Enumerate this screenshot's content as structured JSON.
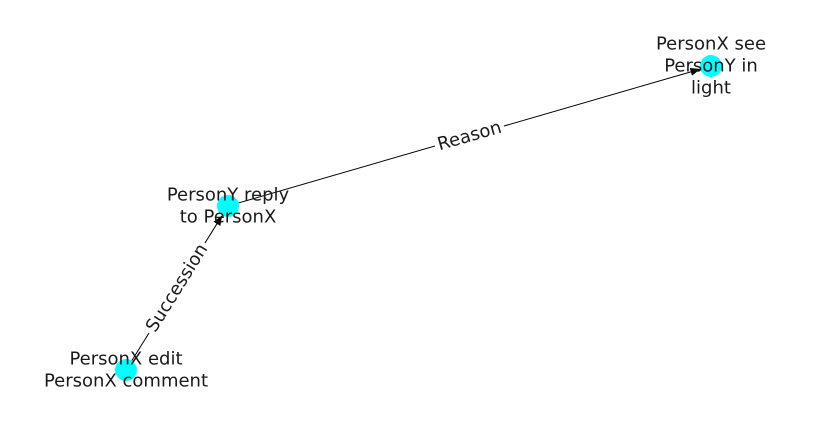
{
  "graph": {
    "node_color": "#00ffff",
    "edge_color": "#000000",
    "nodes": [
      {
        "id": "n1",
        "label_lines": [
          "PersonX see",
          "PersonY in",
          "light"
        ]
      },
      {
        "id": "n2",
        "label_lines": [
          "PersonY reply",
          "to PersonX"
        ]
      },
      {
        "id": "n3",
        "label_lines": [
          "PersonX edit",
          "PersonX comment"
        ]
      }
    ],
    "edges": [
      {
        "from": "n2",
        "to": "n1",
        "label": "Reason"
      },
      {
        "from": "n3",
        "to": "n2",
        "label": "Succession"
      }
    ]
  }
}
